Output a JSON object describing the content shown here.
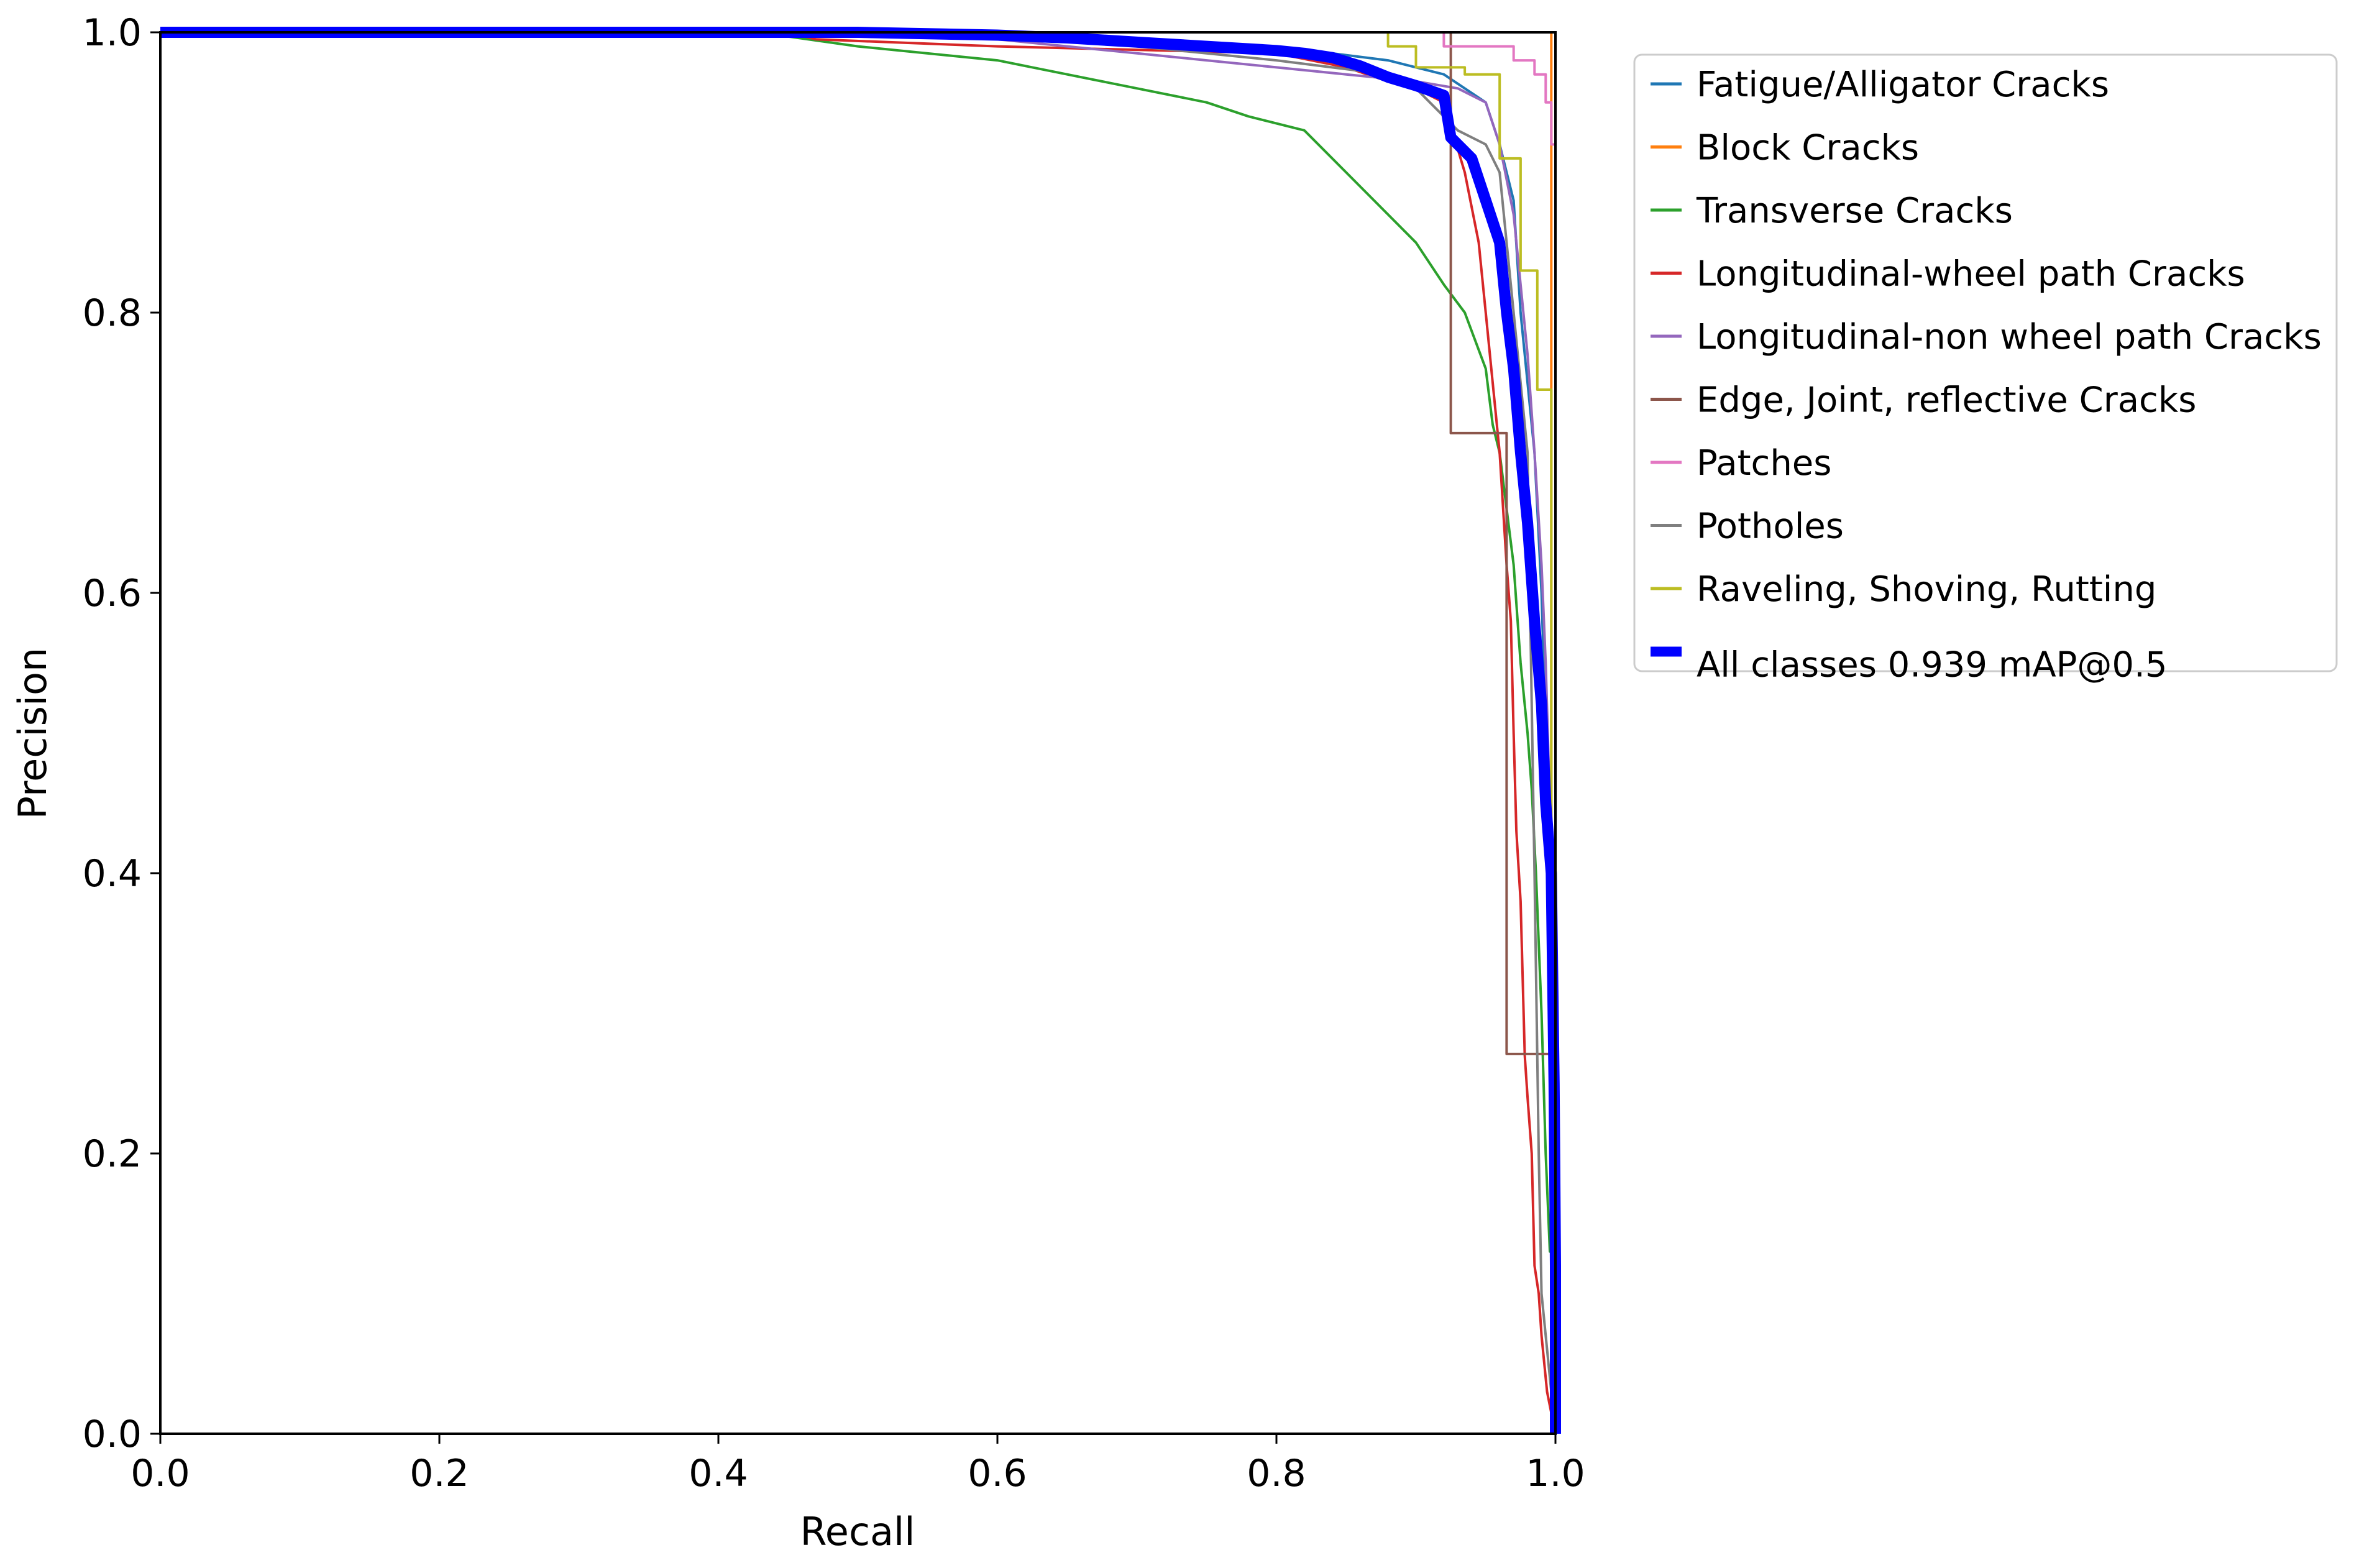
{
  "chart_data": {
    "type": "line",
    "title": "",
    "xlabel": "Recall",
    "ylabel": "Precision",
    "xlim": [
      0,
      1
    ],
    "ylim": [
      0,
      1
    ],
    "xticks": [
      "0.0",
      "0.2",
      "0.4",
      "0.6",
      "0.8",
      "1.0"
    ],
    "yticks": [
      "0.0",
      "0.2",
      "0.4",
      "0.6",
      "0.8",
      "1.0"
    ],
    "grid": false,
    "legend_position": "outside-top-right",
    "series": [
      {
        "name": "Fatigue/Alligator Cracks",
        "color": "#1f77b4",
        "points": [
          [
            0,
            1
          ],
          [
            0.5,
            1
          ],
          [
            0.7,
            0.995
          ],
          [
            0.8,
            0.99
          ],
          [
            0.88,
            0.98
          ],
          [
            0.92,
            0.97
          ],
          [
            0.95,
            0.95
          ],
          [
            0.96,
            0.92
          ],
          [
            0.97,
            0.88
          ],
          [
            0.975,
            0.8
          ],
          [
            0.98,
            0.75
          ],
          [
            0.985,
            0.7
          ],
          [
            0.99,
            0.6
          ],
          [
            0.993,
            0.5
          ],
          [
            0.996,
            0.4
          ],
          [
            0.998,
            0.2
          ],
          [
            1,
            0
          ]
        ]
      },
      {
        "name": "Block Cracks",
        "color": "#ff7f0e",
        "points": [
          [
            0,
            1
          ],
          [
            0.997,
            1
          ],
          [
            0.997,
            0.42
          ],
          [
            1,
            0.42
          ],
          [
            1,
            0
          ]
        ]
      },
      {
        "name": "Transverse Cracks",
        "color": "#2ca02c",
        "points": [
          [
            0,
            1
          ],
          [
            0.2,
            1
          ],
          [
            0.22,
            0.997
          ],
          [
            0.45,
            0.997
          ],
          [
            0.5,
            0.99
          ],
          [
            0.6,
            0.98
          ],
          [
            0.65,
            0.97
          ],
          [
            0.7,
            0.96
          ],
          [
            0.75,
            0.95
          ],
          [
            0.78,
            0.94
          ],
          [
            0.82,
            0.93
          ],
          [
            0.85,
            0.9
          ],
          [
            0.87,
            0.88
          ],
          [
            0.9,
            0.85
          ],
          [
            0.92,
            0.82
          ],
          [
            0.935,
            0.8
          ],
          [
            0.95,
            0.76
          ],
          [
            0.955,
            0.72
          ],
          [
            0.96,
            0.7
          ],
          [
            0.965,
            0.66
          ],
          [
            0.97,
            0.62
          ],
          [
            0.975,
            0.55
          ],
          [
            0.98,
            0.5
          ],
          [
            0.983,
            0.46
          ],
          [
            0.986,
            0.4
          ],
          [
            0.99,
            0.3
          ],
          [
            0.993,
            0.2
          ],
          [
            0.996,
            0.13
          ],
          [
            1,
            0.13
          ],
          [
            1,
            0
          ]
        ]
      },
      {
        "name": "Longitudinal-wheel path Cracks",
        "color": "#d62728",
        "points": [
          [
            0,
            1
          ],
          [
            0.45,
            1
          ],
          [
            0.47,
            0.995
          ],
          [
            0.6,
            0.99
          ],
          [
            0.8,
            0.985
          ],
          [
            0.85,
            0.975
          ],
          [
            0.88,
            0.965
          ],
          [
            0.9,
            0.96
          ],
          [
            0.92,
            0.95
          ],
          [
            0.935,
            0.9
          ],
          [
            0.945,
            0.85
          ],
          [
            0.95,
            0.8
          ],
          [
            0.955,
            0.75
          ],
          [
            0.96,
            0.7
          ],
          [
            0.965,
            0.62
          ],
          [
            0.968,
            0.58
          ],
          [
            0.97,
            0.5
          ],
          [
            0.972,
            0.43
          ],
          [
            0.975,
            0.38
          ],
          [
            0.978,
            0.27
          ],
          [
            0.98,
            0.24
          ],
          [
            0.983,
            0.2
          ],
          [
            0.985,
            0.12
          ],
          [
            0.988,
            0.1
          ],
          [
            0.99,
            0.07
          ],
          [
            0.994,
            0.03
          ],
          [
            1,
            0.0
          ]
        ]
      },
      {
        "name": "Longitudinal-non wheel path Cracks",
        "color": "#9467bd",
        "points": [
          [
            0,
            1
          ],
          [
            0.55,
            1
          ],
          [
            0.65,
            0.99
          ],
          [
            0.7,
            0.985
          ],
          [
            0.75,
            0.98
          ],
          [
            0.8,
            0.975
          ],
          [
            0.85,
            0.97
          ],
          [
            0.9,
            0.965
          ],
          [
            0.93,
            0.96
          ],
          [
            0.95,
            0.95
          ],
          [
            0.96,
            0.92
          ],
          [
            0.97,
            0.87
          ],
          [
            0.975,
            0.82
          ],
          [
            0.98,
            0.77
          ],
          [
            0.985,
            0.7
          ],
          [
            0.99,
            0.62
          ],
          [
            0.993,
            0.55
          ],
          [
            0.996,
            0.45
          ],
          [
            0.998,
            0.3
          ],
          [
            1,
            0
          ]
        ]
      },
      {
        "name": "Edge, Joint, reflective Cracks",
        "color": "#8c564b",
        "points": [
          [
            0,
            1
          ],
          [
            0.925,
            1
          ],
          [
            0.925,
            0.714
          ],
          [
            0.965,
            0.714
          ],
          [
            0.965,
            0.271
          ],
          [
            1,
            0.271
          ],
          [
            1,
            0
          ]
        ]
      },
      {
        "name": "Patches",
        "color": "#e377c2",
        "points": [
          [
            0,
            1
          ],
          [
            0.92,
            1
          ],
          [
            0.92,
            0.99
          ],
          [
            0.97,
            0.99
          ],
          [
            0.97,
            0.98
          ],
          [
            0.985,
            0.98
          ],
          [
            0.985,
            0.97
          ],
          [
            0.993,
            0.97
          ],
          [
            0.993,
            0.95
          ],
          [
            0.997,
            0.95
          ],
          [
            0.997,
            0.92
          ],
          [
            1,
            0.92
          ],
          [
            1,
            0
          ]
        ]
      },
      {
        "name": "Potholes",
        "color": "#7f7f7f",
        "points": [
          [
            0,
            1
          ],
          [
            0.6,
            1
          ],
          [
            0.7,
            0.99
          ],
          [
            0.8,
            0.98
          ],
          [
            0.88,
            0.97
          ],
          [
            0.9,
            0.96
          ],
          [
            0.91,
            0.95
          ],
          [
            0.93,
            0.93
          ],
          [
            0.95,
            0.92
          ],
          [
            0.96,
            0.9
          ],
          [
            0.965,
            0.85
          ],
          [
            0.97,
            0.8
          ],
          [
            0.975,
            0.75
          ],
          [
            0.98,
            0.7
          ],
          [
            0.985,
            0.4
          ],
          [
            0.988,
            0.2
          ],
          [
            0.99,
            0.1
          ],
          [
            0.995,
            0.05
          ],
          [
            1,
            0
          ]
        ]
      },
      {
        "name": "Raveling, Shoving, Rutting",
        "color": "#bcbd22",
        "points": [
          [
            0,
            1
          ],
          [
            0.88,
            1
          ],
          [
            0.88,
            0.99
          ],
          [
            0.9,
            0.99
          ],
          [
            0.9,
            0.975
          ],
          [
            0.935,
            0.975
          ],
          [
            0.935,
            0.97
          ],
          [
            0.96,
            0.97
          ],
          [
            0.96,
            0.91
          ],
          [
            0.975,
            0.91
          ],
          [
            0.975,
            0.83
          ],
          [
            0.987,
            0.83
          ],
          [
            0.987,
            0.745
          ],
          [
            0.997,
            0.745
          ],
          [
            0.997,
            0.35
          ],
          [
            1,
            0.35
          ],
          [
            1,
            0
          ]
        ]
      },
      {
        "name": "All classes 0.939 mAP@0.5",
        "color": "#0000ff",
        "thick": true,
        "points": [
          [
            0,
            1
          ],
          [
            0.5,
            1
          ],
          [
            0.6,
            0.998
          ],
          [
            0.65,
            0.996
          ],
          [
            0.7,
            0.993
          ],
          [
            0.75,
            0.99
          ],
          [
            0.8,
            0.987
          ],
          [
            0.82,
            0.985
          ],
          [
            0.84,
            0.982
          ],
          [
            0.86,
            0.976
          ],
          [
            0.88,
            0.968
          ],
          [
            0.9,
            0.962
          ],
          [
            0.92,
            0.955
          ],
          [
            0.925,
            0.925
          ],
          [
            0.94,
            0.91
          ],
          [
            0.95,
            0.88
          ],
          [
            0.96,
            0.85
          ],
          [
            0.965,
            0.8
          ],
          [
            0.97,
            0.76
          ],
          [
            0.975,
            0.7
          ],
          [
            0.98,
            0.65
          ],
          [
            0.985,
            0.58
          ],
          [
            0.99,
            0.52
          ],
          [
            0.993,
            0.45
          ],
          [
            0.997,
            0.4
          ],
          [
            0.999,
            0.25
          ],
          [
            1,
            0.12
          ],
          [
            1,
            0
          ]
        ]
      }
    ]
  }
}
